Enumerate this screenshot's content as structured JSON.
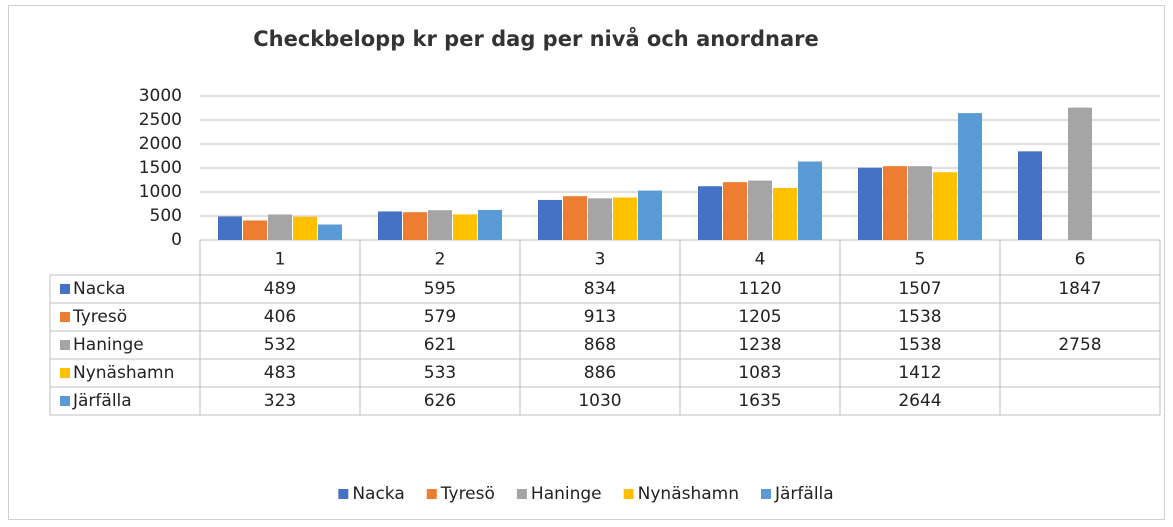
{
  "chart_data": {
    "type": "bar",
    "title": "Checkbelopp kr per dag per nivå och anordnare",
    "categories": [
      "1",
      "2",
      "3",
      "4",
      "5",
      "6"
    ],
    "series": [
      {
        "name": "Nacka",
        "color": "#4472c4",
        "values": [
          489,
          595,
          834,
          1120,
          1507,
          1847
        ]
      },
      {
        "name": "Tyresö",
        "color": "#ed7d31",
        "values": [
          406,
          579,
          913,
          1205,
          1538,
          null
        ]
      },
      {
        "name": "Haninge",
        "color": "#a5a5a5",
        "values": [
          532,
          621,
          868,
          1238,
          1538,
          2758
        ]
      },
      {
        "name": "Nynäshamn",
        "color": "#ffc000",
        "values": [
          483,
          533,
          886,
          1083,
          1412,
          null
        ]
      },
      {
        "name": "Järfälla",
        "color": "#5b9bd5",
        "values": [
          323,
          626,
          1030,
          1635,
          2644,
          null
        ]
      }
    ],
    "ylim": [
      0,
      3000
    ],
    "yticks": [
      0,
      500,
      1000,
      1500,
      2000,
      2500,
      3000
    ],
    "grid": true,
    "legend": "bottom",
    "data_table": true
  }
}
